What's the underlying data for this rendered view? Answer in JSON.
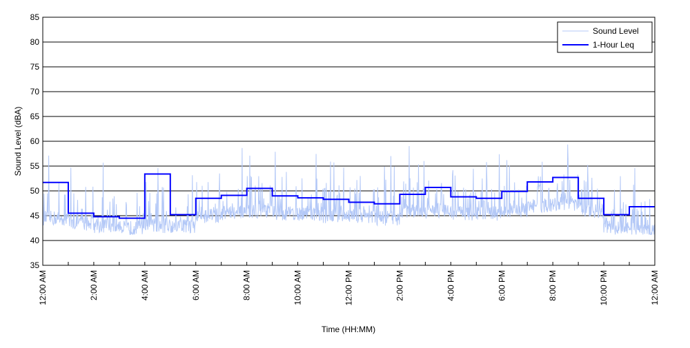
{
  "chart_data": {
    "type": "line",
    "title": "",
    "xlabel": "Time (HH:MM)",
    "ylabel": "Sound Level (dBA)",
    "ylim": [
      35,
      85
    ],
    "yticks": [
      35,
      40,
      45,
      50,
      55,
      60,
      65,
      70,
      75,
      80,
      85
    ],
    "xlim_hours": [
      0,
      24
    ],
    "xtick_labels": [
      "12:00 AM",
      "2:00 AM",
      "4:00 AM",
      "6:00 AM",
      "8:00 AM",
      "10:00 AM",
      "12:00 PM",
      "2:00 PM",
      "4:00 PM",
      "6:00 PM",
      "8:00 PM",
      "10:00 PM",
      "12:00 AM"
    ],
    "grid": "horizontal",
    "legend_position": "top-right",
    "series": [
      {
        "name": "Sound Level",
        "color": "#b3c8f7",
        "note_values_per_hour_baseline": [
          44.5,
          43.5,
          43,
          42.5,
          43,
          43,
          45,
          45.5,
          46,
          45.5,
          45.5,
          45,
          45,
          44.5,
          46,
          46,
          45.5,
          45.5,
          46,
          47,
          47.5,
          46,
          42.5,
          42
        ]
      },
      {
        "name": "1-Hour Leq",
        "color": "#0000ff",
        "values": [
          51.7,
          45.5,
          44.8,
          44.5,
          53.4,
          45.2,
          48.5,
          49.1,
          50.5,
          49.0,
          48.6,
          48.3,
          47.7,
          47.4,
          49.3,
          50.7,
          48.8,
          48.5,
          49.9,
          51.8,
          52.7,
          48.5,
          45.2,
          46.8
        ]
      }
    ]
  }
}
